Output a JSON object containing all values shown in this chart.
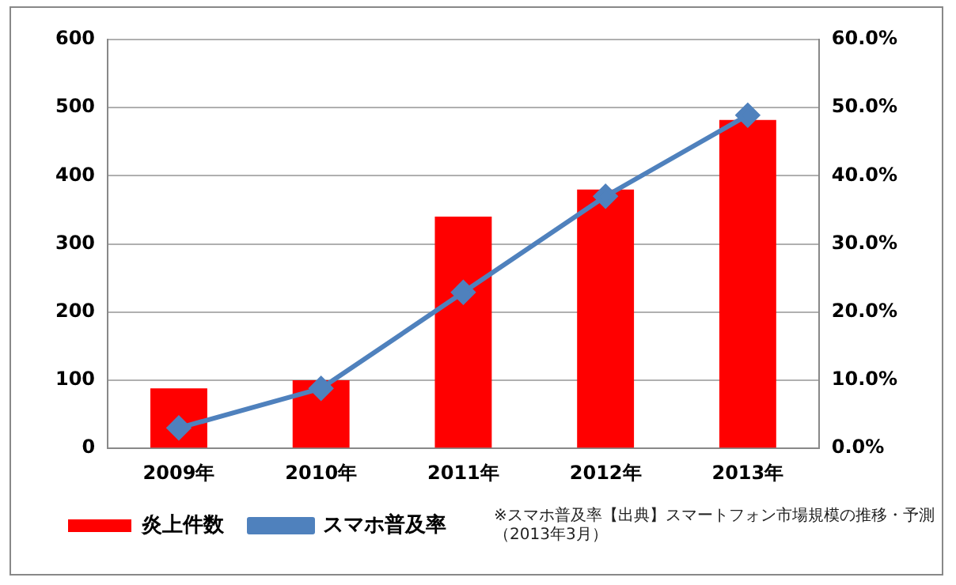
{
  "chart_data": {
    "type": "bar",
    "categories": [
      "2009年",
      "2010年",
      "2011年",
      "2012年",
      "2013年"
    ],
    "series": [
      {
        "name": "炎上件数",
        "color": "#ff0000",
        "values": [
          88,
          100,
          340,
          380,
          482
        ]
      },
      {
        "name": "スマホ普及率",
        "type": "line",
        "axis": "y2",
        "color": "#4f81bd",
        "values": [
          3,
          8.8,
          22.9,
          37,
          48.9
        ],
        "marker": "diamond"
      }
    ],
    "ylim": [
      0,
      600
    ],
    "yticks": [
      0,
      100,
      200,
      300,
      400,
      500,
      600
    ],
    "y2lim": [
      0,
      60
    ],
    "y2ticks": [
      {
        "value": 0,
        "label": "0.0%"
      },
      {
        "value": 10,
        "label": "10.0%"
      },
      {
        "value": 20,
        "label": "20.0%"
      },
      {
        "value": 30,
        "label": "30.0%"
      },
      {
        "value": 40,
        "label": "40.0%"
      },
      {
        "value": 50,
        "label": "50.0%"
      },
      {
        "value": 60,
        "label": "60.0%"
      }
    ],
    "grid": "y",
    "legend": "bottom left",
    "annotations": [
      "※スマホ普及率【出典】スマートフォン市場規模の推移・予測（2013年3月）"
    ]
  }
}
